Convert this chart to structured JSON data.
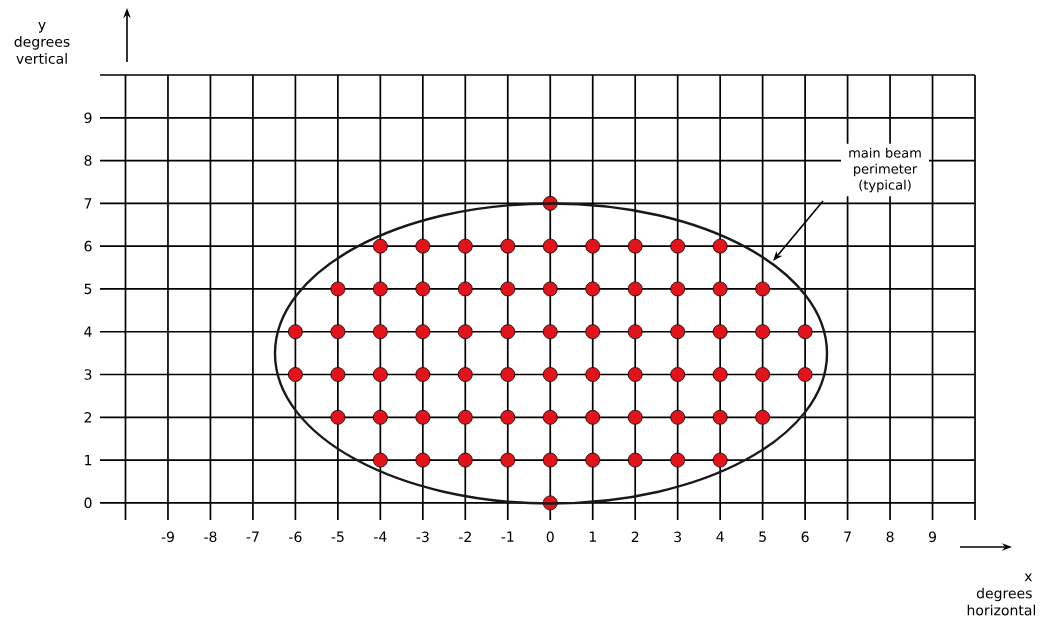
{
  "chart_data": {
    "type": "scatter",
    "xlabel": "x degrees horizontal",
    "ylabel": "y degrees vertical",
    "xlim": [
      -10.6,
      10
    ],
    "ylim": [
      -0.4,
      10
    ],
    "xticks": [
      {
        "value": -10,
        "label": null
      },
      -9,
      -8,
      -7,
      -6,
      -5,
      -4,
      -3,
      -2,
      -1,
      0,
      1,
      2,
      3,
      4,
      5,
      6,
      7,
      8,
      9,
      {
        "value": 10,
        "label": null
      }
    ],
    "yticks": [
      0,
      1,
      2,
      3,
      4,
      5,
      6,
      7,
      8,
      9,
      {
        "value": 10,
        "label": null
      }
    ],
    "grid": true,
    "marker": "circle",
    "series": [
      {
        "color": "#e3131b",
        "x": [
          0,
          -4,
          -3,
          -2,
          -1,
          0,
          1,
          2,
          3,
          4,
          -5,
          -4,
          -3,
          -2,
          -1,
          0,
          1,
          2,
          3,
          4,
          5,
          -6,
          -5,
          -4,
          -3,
          -2,
          -1,
          0,
          1,
          2,
          3,
          4,
          5,
          6,
          -6,
          -5,
          -4,
          -3,
          -2,
          -1,
          0,
          1,
          2,
          3,
          4,
          5,
          6,
          -5,
          -4,
          -3,
          -2,
          -1,
          0,
          1,
          2,
          3,
          4,
          5,
          -4,
          -3,
          -2,
          -1,
          0,
          1,
          2,
          3,
          4,
          0
        ],
        "values": [
          0,
          1,
          1,
          1,
          1,
          1,
          1,
          1,
          1,
          1,
          2,
          2,
          2,
          2,
          2,
          2,
          2,
          2,
          2,
          2,
          2,
          3,
          3,
          3,
          3,
          3,
          3,
          3,
          3,
          3,
          3,
          3,
          3,
          3,
          4,
          4,
          4,
          4,
          4,
          4,
          4,
          4,
          4,
          4,
          4,
          4,
          4,
          5,
          5,
          5,
          5,
          5,
          5,
          5,
          5,
          5,
          5,
          5,
          6,
          6,
          6,
          6,
          6,
          6,
          6,
          6,
          6,
          7
        ]
      }
    ],
    "annotations": [
      "main beam perimeter (typical)"
    ]
  }
}
